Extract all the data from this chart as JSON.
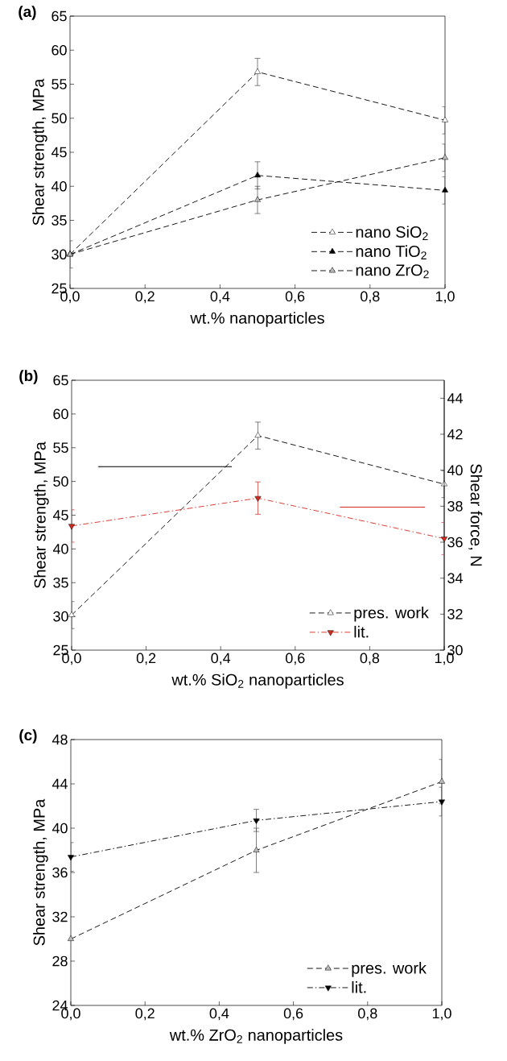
{
  "chart_data": [
    {
      "type": "line",
      "title": "(a)",
      "xlabel": "wt.% nanoparticles",
      "ylabel": "Shear strength, MPa",
      "x": [
        0,
        0.5,
        1.0
      ],
      "xlim": [
        0,
        1.0
      ],
      "ylim": [
        25,
        65
      ],
      "xticks": [
        {
          "value": 0,
          "label": "0,0"
        },
        {
          "value": 0.2,
          "label": "0,2"
        },
        {
          "value": 0.4,
          "label": "0,4"
        },
        {
          "value": 0.6,
          "label": "0,6"
        },
        {
          "value": 0.8,
          "label": "0,8"
        },
        {
          "value": 1.0,
          "label": "1,0"
        }
      ],
      "yticks": [
        25,
        30,
        35,
        40,
        45,
        50,
        55,
        60,
        65
      ],
      "legend": "bottom right",
      "line_style": "dashed",
      "series": [
        {
          "name": "nano SiO$_{2}$",
          "color": "#ffffff",
          "marker": "triangle",
          "values": [
            30.0,
            56.8,
            49.7
          ],
          "errors": [
            null,
            2,
            2
          ]
        },
        {
          "name": "nano TiO$_{2}$",
          "color": "#000000",
          "marker": "triangle",
          "values": [
            30.0,
            41.6,
            39.4
          ],
          "errors": [
            2,
            2,
            2
          ]
        },
        {
          "name": "nano ZrO$_{2}$",
          "color": "#bbbbbb",
          "marker": "triangle",
          "values": [
            30.0,
            38.0,
            44.2
          ],
          "errors": [
            null,
            2,
            2
          ]
        }
      ]
    },
    {
      "type": "line",
      "title": "(b)",
      "xlabel": "wt.% SiO$_{2}$ nanoparticles",
      "ylabel": "Shear strength, MPa",
      "y2label": "Shear force, N",
      "x": [
        0,
        0.5,
        1.0
      ],
      "xlim": [
        0,
        1.0
      ],
      "ylim": [
        25,
        65
      ],
      "y2lim": [
        30,
        45
      ],
      "xticks": [
        {
          "value": 0,
          "label": "0,0"
        },
        {
          "value": 0.2,
          "label": "0,2"
        },
        {
          "value": 0.4,
          "label": "0,4"
        },
        {
          "value": 0.6,
          "label": "0,6"
        },
        {
          "value": 0.8,
          "label": "0,8"
        },
        {
          "value": 1.0,
          "label": "1,0"
        }
      ],
      "yticks": [
        25,
        30,
        35,
        40,
        45,
        50,
        55,
        60,
        65
      ],
      "y2ticks": [
        30,
        32,
        34,
        36,
        38,
        40,
        42,
        44
      ],
      "legend": "bottom right",
      "series": [
        {
          "name": "pres. work",
          "color": "#ffffff",
          "marker": "triangle",
          "line_style": "dashed",
          "values": [
            30.2,
            56.8,
            49.6
          ],
          "errors": [
            2,
            2,
            2
          ]
        },
        {
          "name": "lit.",
          "color": "#d42a1e",
          "marker": "triangle-down",
          "line_style": "dashdot",
          "axis": "y2",
          "values": [
            36.9,
            38.45,
            36.2
          ],
          "errors": [
            0.9,
            0.9,
            0.9
          ]
        }
      ]
    },
    {
      "type": "line",
      "title": "(c)",
      "xlabel": "wt.% ZrO$_{2}$ nanoparticles",
      "ylabel": "Shear strength, MPa",
      "x": [
        0,
        0.5,
        1.0
      ],
      "xlim": [
        0,
        1.0
      ],
      "ylim": [
        24,
        48
      ],
      "xticks": [
        {
          "value": 0,
          "label": "0,0"
        },
        {
          "value": 0.2,
          "label": "0,2"
        },
        {
          "value": 0.4,
          "label": "0,4"
        },
        {
          "value": 0.6,
          "label": "0,6"
        },
        {
          "value": 0.8,
          "label": "0,8"
        },
        {
          "value": 1.0,
          "label": "1,0"
        }
      ],
      "yticks": [
        24,
        28,
        32,
        36,
        40,
        44,
        48
      ],
      "legend": "bottom right",
      "series": [
        {
          "name": "pres. work",
          "color": "#bbbbbb",
          "marker": "triangle",
          "line_style": "dashed",
          "values": [
            30.0,
            38.0,
            44.2
          ],
          "errors": [
            null,
            2,
            2
          ]
        },
        {
          "name": "lit.",
          "color": "#000000",
          "marker": "triangle-down",
          "line_style": "dashdot",
          "values": [
            37.4,
            40.7,
            42.4
          ],
          "errors": [
            1.3,
            1,
            1.3
          ]
        }
      ]
    }
  ]
}
